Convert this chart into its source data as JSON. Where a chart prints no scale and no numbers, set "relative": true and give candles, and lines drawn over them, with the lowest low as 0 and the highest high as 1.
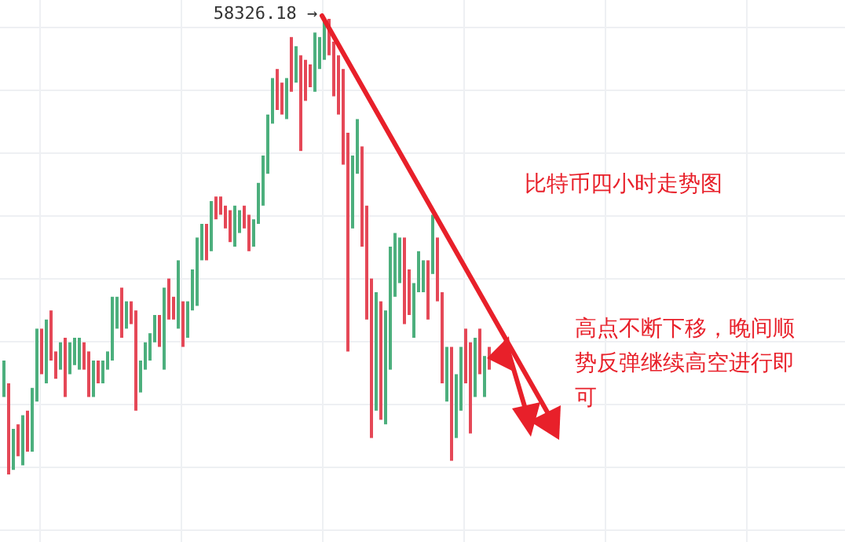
{
  "chart_data": {
    "type": "candlestick",
    "relative": true,
    "grid": true,
    "categories": [
      null,
      null,
      null,
      null,
      null,
      null,
      null,
      null,
      null,
      null,
      null,
      null,
      null,
      null,
      null,
      null,
      null,
      null,
      null,
      null,
      null,
      null,
      null,
      null,
      null,
      null,
      null,
      null,
      null,
      null,
      null,
      null,
      null,
      null,
      null,
      null,
      null,
      null,
      null,
      null,
      null,
      null,
      null,
      null,
      null,
      null,
      null,
      null,
      null,
      null,
      null,
      null,
      null,
      null,
      null,
      null,
      null,
      null,
      null,
      null,
      null,
      null,
      null,
      null,
      null,
      null,
      null,
      null,
      null,
      null,
      null,
      null,
      null,
      null,
      null,
      null,
      null,
      null,
      null,
      null,
      null,
      null,
      null,
      null,
      null,
      null,
      null,
      null,
      null,
      null,
      null,
      null,
      null,
      null,
      null,
      null,
      null,
      null,
      null,
      null,
      null,
      null,
      null,
      null
    ],
    "ohlc": [
      [
        0.17,
        0.25,
        0.17,
        0.25
      ],
      [
        0.2,
        0.2,
        0,
        0
      ],
      [
        0.01,
        0.1,
        0.01,
        0.1
      ],
      [
        0.11,
        0.11,
        0.04,
        0.04
      ],
      [
        0.02,
        0.13,
        0.02,
        0.13
      ],
      [
        0.14,
        0.14,
        0.05,
        0.05
      ],
      [
        0.05,
        0.19,
        0.05,
        0.19
      ],
      [
        0.16,
        0.32,
        0.16,
        0.32
      ],
      [
        0.32,
        0.32,
        0.22,
        0.22
      ],
      [
        0.2,
        0.34,
        0.2,
        0.34
      ],
      [
        0.36,
        0.36,
        0.25,
        0.25
      ],
      [
        0.27,
        0.27,
        0.21,
        0.21
      ],
      [
        0.23,
        0.29,
        0.23,
        0.29
      ],
      [
        0.3,
        0.3,
        0.17,
        0.17
      ],
      [
        0.22,
        0.29,
        0.22,
        0.29
      ],
      [
        0.24,
        0.3,
        0.24,
        0.3
      ],
      [
        0.23,
        0.3,
        0.23,
        0.3
      ],
      [
        0.29,
        0.29,
        0.23,
        0.23
      ],
      [
        0.27,
        0.27,
        0.17,
        0.17
      ],
      [
        0.17,
        0.25,
        0.17,
        0.25
      ],
      [
        0.25,
        0.25,
        0.2,
        0.2
      ],
      [
        0.2,
        0.25,
        0.2,
        0.25
      ],
      [
        0.23,
        0.27,
        0.23,
        0.27
      ],
      [
        0.25,
        0.39,
        0.25,
        0.39
      ],
      [
        0.32,
        0.39,
        0.32,
        0.39
      ],
      [
        0.41,
        0.41,
        0.3,
        0.3
      ],
      [
        0.32,
        0.38,
        0.32,
        0.38
      ],
      [
        0.38,
        0.38,
        0.33,
        0.33
      ],
      [
        0.36,
        0.36,
        0.14,
        0.14
      ],
      [
        0.18,
        0.25,
        0.18,
        0.25
      ],
      [
        0.23,
        0.29,
        0.23,
        0.29
      ],
      [
        0.25,
        0.31,
        0.25,
        0.31
      ],
      [
        0.29,
        0.35,
        0.29,
        0.35
      ],
      [
        0.35,
        0.35,
        0.28,
        0.28
      ],
      [
        0.23,
        0.41,
        0.23,
        0.41
      ],
      [
        0.43,
        0.43,
        0.34,
        0.34
      ],
      [
        0.39,
        0.39,
        0.34,
        0.34
      ],
      [
        0.32,
        0.47,
        0.32,
        0.47
      ],
      [
        0.38,
        0.38,
        0.28,
        0.28
      ],
      [
        0.3,
        0.38,
        0.3,
        0.38
      ],
      [
        0.36,
        0.45,
        0.36,
        0.45
      ],
      [
        0.37,
        0.52,
        0.37,
        0.52
      ],
      [
        0.47,
        0.55,
        0.47,
        0.55
      ],
      [
        0.55,
        0.55,
        0.47,
        0.47
      ],
      [
        0.49,
        0.6,
        0.49,
        0.6
      ],
      [
        0.61,
        0.61,
        0.56,
        0.56
      ],
      [
        0.61,
        0.61,
        0.57,
        0.57
      ],
      [
        0.59,
        0.59,
        0.54,
        0.54
      ],
      [
        0.58,
        0.58,
        0.51,
        0.51
      ],
      [
        0.5,
        0.59,
        0.5,
        0.59
      ],
      [
        0.53,
        0.58,
        0.53,
        0.58
      ],
      [
        0.59,
        0.59,
        0.54,
        0.54
      ],
      [
        0.57,
        0.57,
        0.49,
        0.49
      ],
      [
        0.5,
        0.56,
        0.5,
        0.56
      ],
      [
        0.55,
        0.64,
        0.55,
        0.64
      ],
      [
        0.59,
        0.7,
        0.59,
        0.7
      ],
      [
        0.66,
        0.79,
        0.66,
        0.79
      ],
      [
        0.77,
        0.87,
        0.77,
        0.87
      ],
      [
        0.89,
        0.89,
        0.8,
        0.8
      ],
      [
        0.86,
        0.86,
        0.79,
        0.79
      ],
      [
        0.78,
        0.87,
        0.78,
        0.87
      ],
      [
        0.96,
        0.96,
        0.84,
        0.84
      ],
      [
        0.86,
        0.94,
        0.86,
        0.94
      ],
      [
        0.92,
        0.92,
        0.71,
        0.71
      ],
      [
        0.91,
        0.91,
        0.82,
        0.82
      ],
      [
        0.9,
        0.9,
        0.85,
        0.85
      ],
      [
        0.84,
        0.97,
        0.84,
        0.97
      ],
      [
        0.89,
        0.96,
        0.89,
        0.96
      ],
      [
        0.91,
        1,
        0.91,
        1
      ],
      [
        1,
        1,
        0.92,
        0.92
      ],
      [
        0.95,
        0.95,
        0.83,
        0.83
      ],
      [
        0.92,
        0.92,
        0.79,
        0.79
      ],
      [
        0.89,
        0.89,
        0.68,
        0.68
      ],
      [
        0.75,
        0.75,
        0.27,
        0.27
      ],
      [
        0.54,
        0.7,
        0.54,
        0.7
      ],
      [
        0.66,
        0.78,
        0.66,
        0.78
      ],
      [
        0.72,
        0.72,
        0.5,
        0.5
      ],
      [
        0.59,
        0.59,
        0.34,
        0.34
      ],
      [
        0.43,
        0.43,
        0.08,
        0.08
      ],
      [
        0.14,
        0.4,
        0.14,
        0.4
      ],
      [
        0.38,
        0.38,
        0.12,
        0.12
      ],
      [
        0.11,
        0.36,
        0.11,
        0.36
      ],
      [
        0.23,
        0.5,
        0.23,
        0.5
      ],
      [
        0.39,
        0.53,
        0.39,
        0.53
      ],
      [
        0.42,
        0.52,
        0.42,
        0.52
      ],
      [
        0.52,
        0.52,
        0.33,
        0.33
      ],
      [
        0.45,
        0.45,
        0.35,
        0.35
      ],
      [
        0.3,
        0.42,
        0.3,
        0.42
      ],
      [
        0.4,
        0.49,
        0.4,
        0.49
      ],
      [
        0.4,
        0.47,
        0.4,
        0.47
      ],
      [
        0.47,
        0.47,
        0.34,
        0.34
      ],
      [
        0.44,
        0.57,
        0.44,
        0.57
      ],
      [
        0.52,
        0.52,
        0.38,
        0.38
      ],
      [
        0.4,
        0.4,
        0.2,
        0.2
      ],
      [
        0.16,
        0.28,
        0.16,
        0.28
      ],
      [
        0.28,
        0.28,
        0.03,
        0.03
      ],
      [
        0.08,
        0.22,
        0.08,
        0.22
      ],
      [
        0.14,
        0.28,
        0.14,
        0.28
      ],
      [
        0.32,
        0.32,
        0.2,
        0.2
      ],
      [
        0.29,
        0.29,
        0.09,
        0.09
      ],
      [
        0.17,
        0.3,
        0.17,
        0.3
      ],
      [
        0.32,
        0.32,
        0.22,
        0.22
      ],
      [
        0.17,
        0.26,
        0.17,
        0.26
      ],
      [
        0.28,
        0.28,
        0.23,
        0.23
      ]
    ],
    "colors": [
      "#4caf7d",
      "#e54857",
      "#4caf7d",
      "#e54857",
      "#4caf7d",
      "#e54857",
      "#4caf7d",
      "#4caf7d",
      "#e54857",
      "#4caf7d",
      "#e54857",
      "#e54857",
      "#4caf7d",
      "#e54857",
      "#4caf7d",
      "#4caf7d",
      "#4caf7d",
      "#e54857",
      "#e54857",
      "#4caf7d",
      "#e54857",
      "#4caf7d",
      "#4caf7d",
      "#4caf7d",
      "#4caf7d",
      "#e54857",
      "#4caf7d",
      "#e54857",
      "#e54857",
      "#4caf7d",
      "#4caf7d",
      "#4caf7d",
      "#4caf7d",
      "#e54857",
      "#4caf7d",
      "#e54857",
      "#e54857",
      "#4caf7d",
      "#e54857",
      "#4caf7d",
      "#4caf7d",
      "#4caf7d",
      "#4caf7d",
      "#e54857",
      "#4caf7d",
      "#e54857",
      "#e54857",
      "#e54857",
      "#e54857",
      "#4caf7d",
      "#4caf7d",
      "#e54857",
      "#e54857",
      "#4caf7d",
      "#4caf7d",
      "#4caf7d",
      "#4caf7d",
      "#4caf7d",
      "#e54857",
      "#e54857",
      "#4caf7d",
      "#e54857",
      "#4caf7d",
      "#e54857",
      "#e54857",
      "#e54857",
      "#4caf7d",
      "#4caf7d",
      "#4caf7d",
      "#e54857",
      "#e54857",
      "#e54857",
      "#e54857",
      "#e54857",
      "#4caf7d",
      "#4caf7d",
      "#e54857",
      "#e54857",
      "#e54857",
      "#4caf7d",
      "#e54857",
      "#4caf7d",
      "#4caf7d",
      "#4caf7d",
      "#4caf7d",
      "#e54857",
      "#e54857",
      "#4caf7d",
      "#4caf7d",
      "#4caf7d",
      "#e54857",
      "#4caf7d",
      "#e54857",
      "#e54857",
      "#4caf7d",
      "#e54857",
      "#4caf7d",
      "#4caf7d",
      "#e54857",
      "#e54857",
      "#4caf7d",
      "#e54857",
      "#4caf7d",
      "#e54857"
    ],
    "annotations": [
      "58326.18 →",
      "比特币四小时走势图",
      "高点不断下移，晚间顺势反弹继续高空进行即可"
    ]
  }
}
